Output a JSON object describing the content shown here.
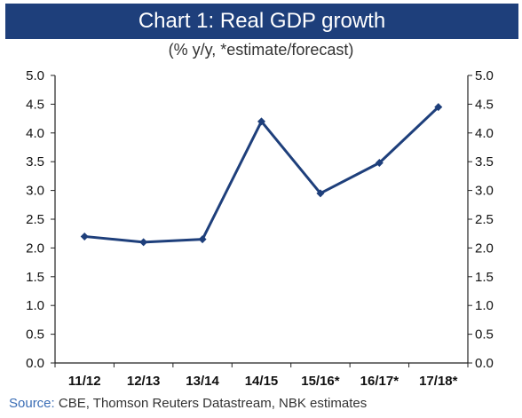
{
  "chart_data": {
    "type": "line",
    "title": "Chart 1: Real GDP growth",
    "subtitle": "(% y/y, *estimate/forecast)",
    "categories": [
      "11/12",
      "12/13",
      "13/14",
      "14/15",
      "15/16*",
      "16/17*",
      "17/18*"
    ],
    "series": [
      {
        "values": [
          2.2,
          2.1,
          2.15,
          4.2,
          2.95,
          3.48,
          4.45
        ]
      }
    ],
    "ylim": [
      0,
      5
    ],
    "yticks": [
      "0.0",
      "0.5",
      "1.0",
      "1.5",
      "2.0",
      "2.5",
      "3.0",
      "3.5",
      "4.0",
      "4.5",
      "5.0"
    ],
    "xlabel": "",
    "ylabel": "",
    "grid": false,
    "line_color": "#1e3f7b",
    "source_label": "Source:",
    "source_text": "CBE, Thomson Reuters Datastream, NBK estimates"
  }
}
